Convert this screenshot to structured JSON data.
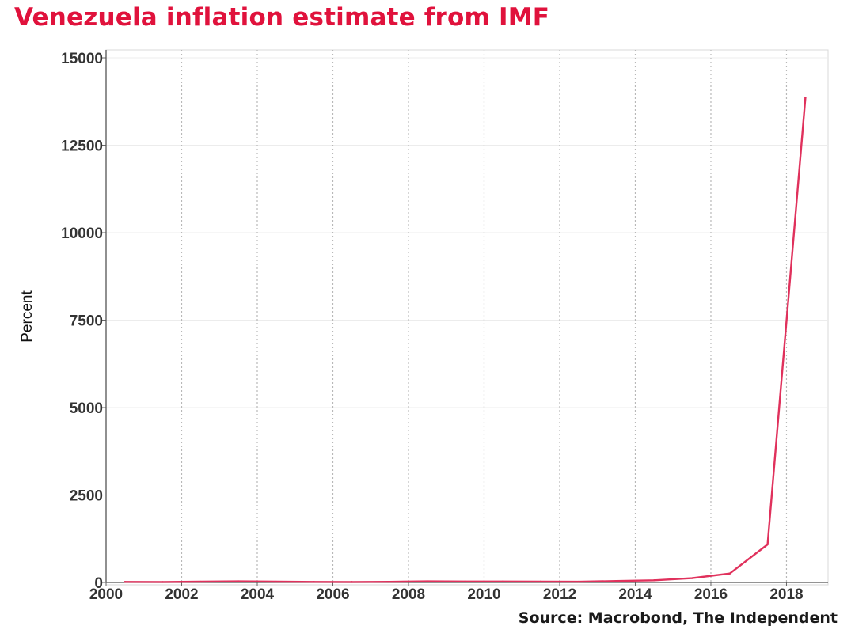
{
  "chart_data": {
    "type": "line",
    "title": "Venezuela inflation estimate from IMF",
    "source": "Source: Macrobond, The Independent",
    "xlabel": "",
    "ylabel": "Percent",
    "xlim": [
      2000,
      2019.1
    ],
    "ylim": [
      0,
      15000
    ],
    "x_ticks": [
      2000,
      2002,
      2004,
      2006,
      2008,
      2010,
      2012,
      2014,
      2016,
      2018
    ],
    "x_tick_labels": [
      "2000",
      "2002",
      "2004",
      "2006",
      "2008",
      "2010",
      "2012",
      "2014",
      "2016",
      "2018"
    ],
    "y_ticks": [
      0,
      2500,
      5000,
      7500,
      10000,
      12500,
      15000
    ],
    "y_tick_labels": [
      "0",
      "2500",
      "5000",
      "7500",
      "10000",
      "12500",
      "15000"
    ],
    "grid": {
      "x": true,
      "y": true,
      "x_style": "dotted"
    },
    "series": [
      {
        "color": "#e0315c",
        "x": [
          2000.5,
          2001.5,
          2002.5,
          2003.5,
          2004.5,
          2005.5,
          2006.5,
          2007.5,
          2008.5,
          2009.5,
          2010.5,
          2011.5,
          2012.5,
          2013.5,
          2014.5,
          2015.5,
          2016.5,
          2017.5,
          2018.5
        ],
        "y": [
          16,
          13,
          22,
          31,
          22,
          16,
          14,
          19,
          31,
          27,
          28,
          26,
          21,
          41,
          62,
          122,
          255,
          1087,
          13865
        ]
      }
    ]
  }
}
